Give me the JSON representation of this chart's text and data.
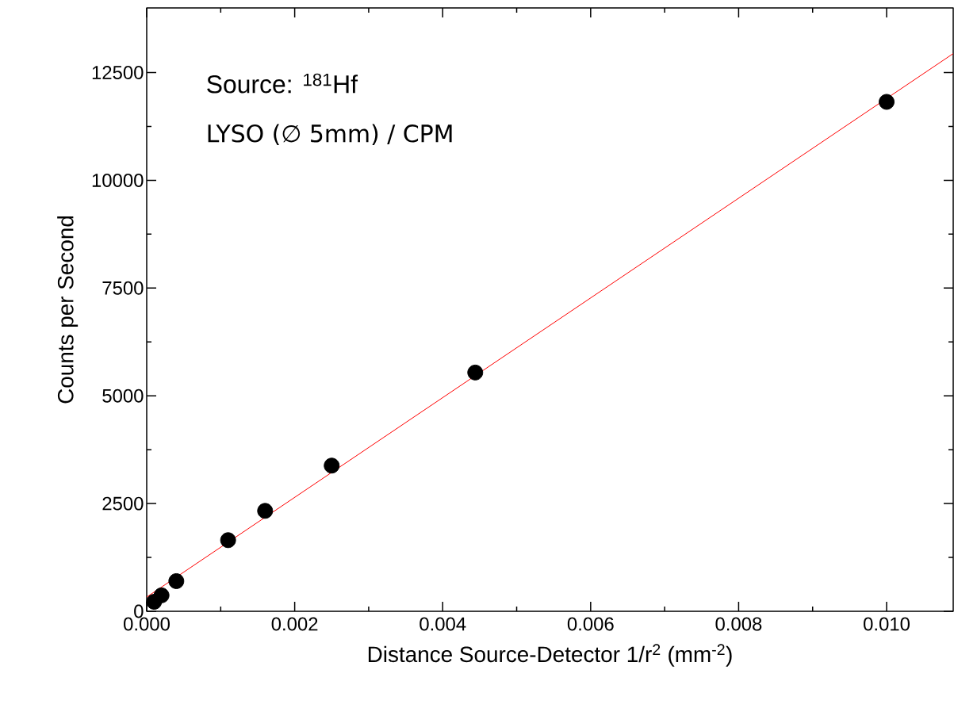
{
  "chart_data": {
    "type": "scatter",
    "xlabel": "Distance Source-Detector 1/r$^{2}$ (mm$^{-2}$)",
    "ylabel": "Counts per Second",
    "annotations": [
      "Source: $^{181}$Hf",
      "LYSO (∅ 5mm) / CPM"
    ],
    "series": [
      {
        "color": "#000000",
        "marker": "circle",
        "x": [
          0.0001,
          0.0002,
          0.0004,
          0.0011,
          0.0016,
          0.0025,
          0.00444,
          0.01
        ],
        "values": [
          220,
          370,
          700,
          1650,
          2330,
          3380,
          5540,
          11820
        ]
      },
      {
        "type": "line",
        "color": "#ff0000",
        "marker": "none",
        "x": [
          0,
          0.0109
        ],
        "values": [
          330,
          12940
        ]
      }
    ],
    "xlim": [
      0,
      0.0109
    ],
    "ylim": [
      0,
      14000
    ],
    "xticks": [
      {
        "value": 0,
        "label": "0.000"
      },
      {
        "value": 0.002,
        "label": "0.002"
      },
      {
        "value": 0.004,
        "label": "0.004"
      },
      {
        "value": 0.006,
        "label": "0.006"
      },
      {
        "value": 0.008,
        "label": "0.008"
      },
      {
        "value": 0.01,
        "label": "0.010"
      }
    ],
    "yticks": [
      0,
      2500,
      5000,
      7500,
      10000,
      12500
    ],
    "grid": false
  }
}
